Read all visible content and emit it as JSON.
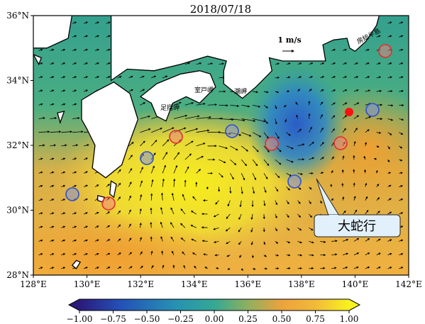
{
  "title": "2018/07/18",
  "map": {
    "lon_ticks": [
      {
        "value": 128,
        "label": "128°E"
      },
      {
        "value": 130,
        "label": "130°E"
      },
      {
        "value": 132,
        "label": "132°E"
      },
      {
        "value": 134,
        "label": "134°E"
      },
      {
        "value": 136,
        "label": "136°E"
      },
      {
        "value": 138,
        "label": "138°E"
      },
      {
        "value": 140,
        "label": "140°E"
      },
      {
        "value": 142,
        "label": "142°E"
      }
    ],
    "lat_ticks": [
      {
        "value": 28,
        "label": "28°N"
      },
      {
        "value": 30,
        "label": "30°N"
      },
      {
        "value": 32,
        "label": "32°N"
      },
      {
        "value": 34,
        "label": "34°N"
      },
      {
        "value": 36,
        "label": "36°N"
      }
    ],
    "place_labels": [
      "足摺岬",
      "室戸岬",
      "潮岬",
      "房総半島"
    ],
    "scale_label": "1 m/s",
    "callout": "大蛇行"
  },
  "colorbar": {
    "ticks": [
      {
        "value": -1,
        "label": "−1.00"
      },
      {
        "value": -0.75,
        "label": "−0.75"
      },
      {
        "value": -0.5,
        "label": "−0.50"
      },
      {
        "value": -0.25,
        "label": "−0.25"
      },
      {
        "value": 0,
        "label": "0.00"
      },
      {
        "value": 0.25,
        "label": "0.25"
      },
      {
        "value": 0.5,
        "label": "0.50"
      },
      {
        "value": 0.75,
        "label": "0.75"
      },
      {
        "value": 1,
        "label": "1.00"
      }
    ]
  }
}
